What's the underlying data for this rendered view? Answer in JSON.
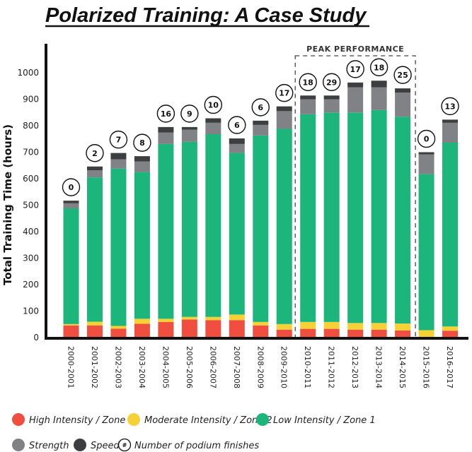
{
  "chart_data": {
    "type": "bar",
    "stacked": true,
    "title": "Polarized Training: A Case Study",
    "ylabel": "Total Training Time (hours)",
    "xlabel": "",
    "ylim": [
      0,
      1000
    ],
    "yticks": [
      0,
      100,
      200,
      300,
      400,
      500,
      600,
      700,
      800,
      900,
      1000
    ],
    "grid": false,
    "legend_placement": "bottom",
    "categories": [
      "2000-2001",
      "2001-2002",
      "2002-2003",
      "2003-2004",
      "2004-2005",
      "2005-2006",
      "2006-2007",
      "2007-2008",
      "2008-2009",
      "2009-2010",
      "2010-2011",
      "2011-2012",
      "2012-2013",
      "2013-2014",
      "2014-2015",
      "2015-2016",
      "2016-2017"
    ],
    "series": [
      {
        "name": "High Intensity / Zone 3",
        "color": "#f04e3e",
        "values": [
          46,
          46,
          34,
          52,
          59,
          68,
          66,
          66,
          46,
          30,
          33,
          33,
          30,
          30,
          27,
          0,
          26
        ]
      },
      {
        "name": "Moderate Intensity / Zone 2",
        "color": "#f6d136",
        "values": [
          5,
          14,
          10,
          19,
          12,
          10,
          12,
          21,
          13,
          21,
          26,
          26,
          25,
          25,
          26,
          28,
          16
        ]
      },
      {
        "name": "Low Intensity / Zone 1",
        "color": "#1cb67d",
        "values": [
          437,
          545,
          594,
          554,
          660,
          661,
          690,
          610,
          704,
          737,
          784,
          791,
          795,
          804,
          781,
          589,
          694
        ]
      },
      {
        "name": "Strength",
        "color": "#808285",
        "values": [
          19,
          27,
          35,
          40,
          43,
          46,
          43,
          34,
          40,
          67,
          57,
          50,
          95,
          86,
          91,
          75,
          75
        ]
      },
      {
        "name": "Speed",
        "color": "#3d3e40",
        "values": [
          10,
          14,
          24,
          20,
          21,
          10,
          17,
          21,
          16,
          18,
          14,
          14,
          18,
          25,
          16,
          8,
          12
        ]
      }
    ],
    "podium_finishes": [
      "0",
      "2",
      "7",
      "8",
      "16",
      "9",
      "10",
      "6",
      "6",
      "17",
      "18",
      "29",
      "17",
      "18",
      "25",
      "0",
      "13"
    ],
    "podium_legend": {
      "symbol": "#",
      "label": "Number of podium finishes"
    },
    "annotation": {
      "text": "PEAK PERFORMANCE",
      "from": "2010-2011",
      "to": "2014-2015"
    }
  }
}
